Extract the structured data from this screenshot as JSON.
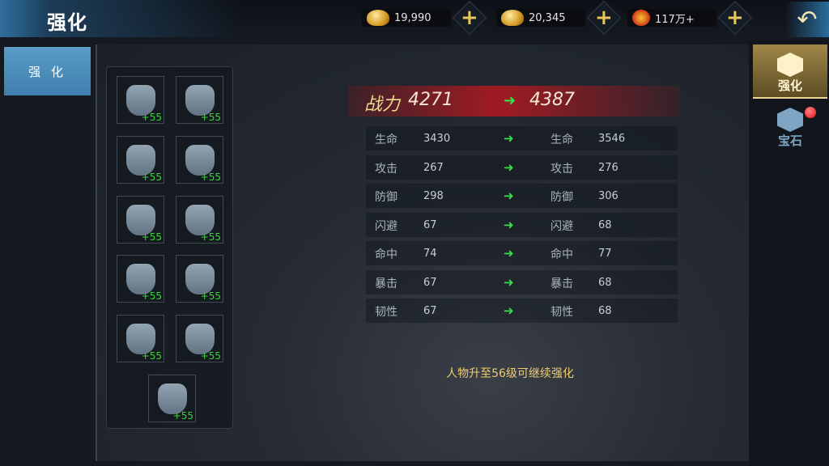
{
  "header": {
    "title": "强化",
    "back_icon": "back-arrow-icon",
    "currencies": [
      {
        "icon": "gold-ingot-icon",
        "value": "19,990"
      },
      {
        "icon": "bound-gold-ingot-icon",
        "value": "20,345"
      },
      {
        "icon": "copper-coins-icon",
        "value": "117万+"
      }
    ]
  },
  "left_tabs": [
    {
      "label": "强 化",
      "active": true
    }
  ],
  "equipment": [
    {
      "icon": "helmet-icon",
      "level": "+55"
    },
    {
      "icon": "shoulder-icon",
      "level": "+55"
    },
    {
      "icon": "armor-icon",
      "level": "+55"
    },
    {
      "icon": "necklace-icon",
      "level": "+55"
    },
    {
      "icon": "belt-icon",
      "level": "+55"
    },
    {
      "icon": "bracer-icon",
      "level": "+55"
    },
    {
      "icon": "pants-icon",
      "level": "+55"
    },
    {
      "icon": "blade-icon",
      "level": "+55"
    },
    {
      "icon": "boots-icon",
      "level": "+55"
    },
    {
      "icon": "ring-icon",
      "level": "+55"
    },
    {
      "icon": "sword-icon",
      "level": "+55"
    }
  ],
  "power": {
    "label": "战力",
    "current": "4271",
    "next": "4387"
  },
  "stats": [
    {
      "name": "生命",
      "current": "3430",
      "next": "3546"
    },
    {
      "name": "攻击",
      "current": "267",
      "next": "276"
    },
    {
      "name": "防御",
      "current": "298",
      "next": "306"
    },
    {
      "name": "闪避",
      "current": "67",
      "next": "68"
    },
    {
      "name": "命中",
      "current": "74",
      "next": "77"
    },
    {
      "name": "暴击",
      "current": "67",
      "next": "68"
    },
    {
      "name": "韧性",
      "current": "67",
      "next": "68"
    }
  ],
  "message": "人物升至56级可继续强化",
  "side_tabs": [
    {
      "label": "强化",
      "icon": "enhance-emblem-icon",
      "active": true
    },
    {
      "label": "宝石",
      "icon": "gem-emblem-icon",
      "badge": true
    }
  ],
  "colors": {
    "accent_gold": "#f0cd72",
    "level_green": "#38d438",
    "arrow_green": "#35e04a",
    "power_red": "#a01b22"
  }
}
